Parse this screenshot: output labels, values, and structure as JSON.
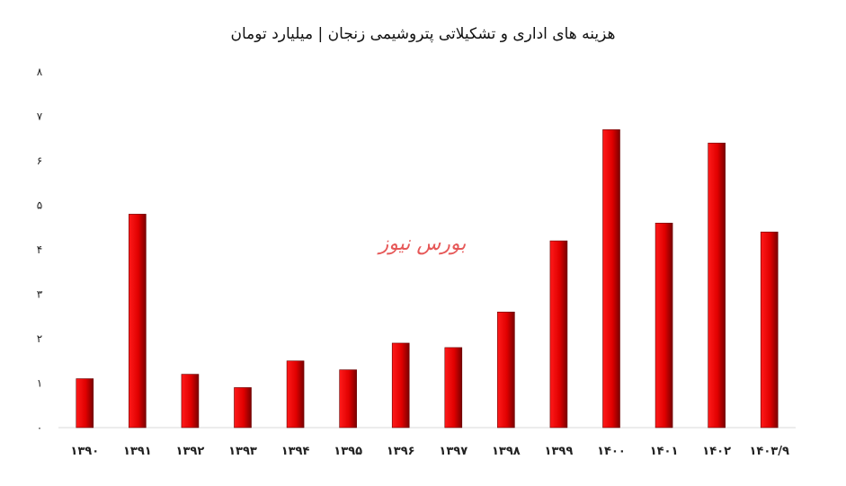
{
  "chart_data": {
    "type": "bar",
    "title": "هزینه های اداری و تشکیلاتی پتروشیمی زنجان | میلیارد تومان",
    "xlabel": "",
    "ylabel": "",
    "ylim": [
      0,
      8
    ],
    "yticks": [
      "۰",
      "۱",
      "۲",
      "۳",
      "۴",
      "۵",
      "۶",
      "۷",
      "۸"
    ],
    "categories": [
      "۱۳۹۰",
      "۱۳۹۱",
      "۱۳۹۲",
      "۱۳۹۳",
      "۱۳۹۴",
      "۱۳۹۵",
      "۱۳۹۶",
      "۱۳۹۷",
      "۱۳۹۸",
      "۱۳۹۹",
      "۱۴۰۰",
      "۱۴۰۱",
      "۱۴۰۲",
      "۱۴۰۳/۹"
    ],
    "values": [
      1.1,
      4.8,
      1.2,
      0.9,
      1.5,
      1.3,
      1.9,
      1.8,
      2.6,
      4.2,
      6.7,
      4.6,
      6.4,
      4.4
    ],
    "grid": false,
    "legend": "none",
    "bar_color": "#e00000",
    "bar_shade": "#7a0000"
  },
  "watermark": "بورس نیوز"
}
